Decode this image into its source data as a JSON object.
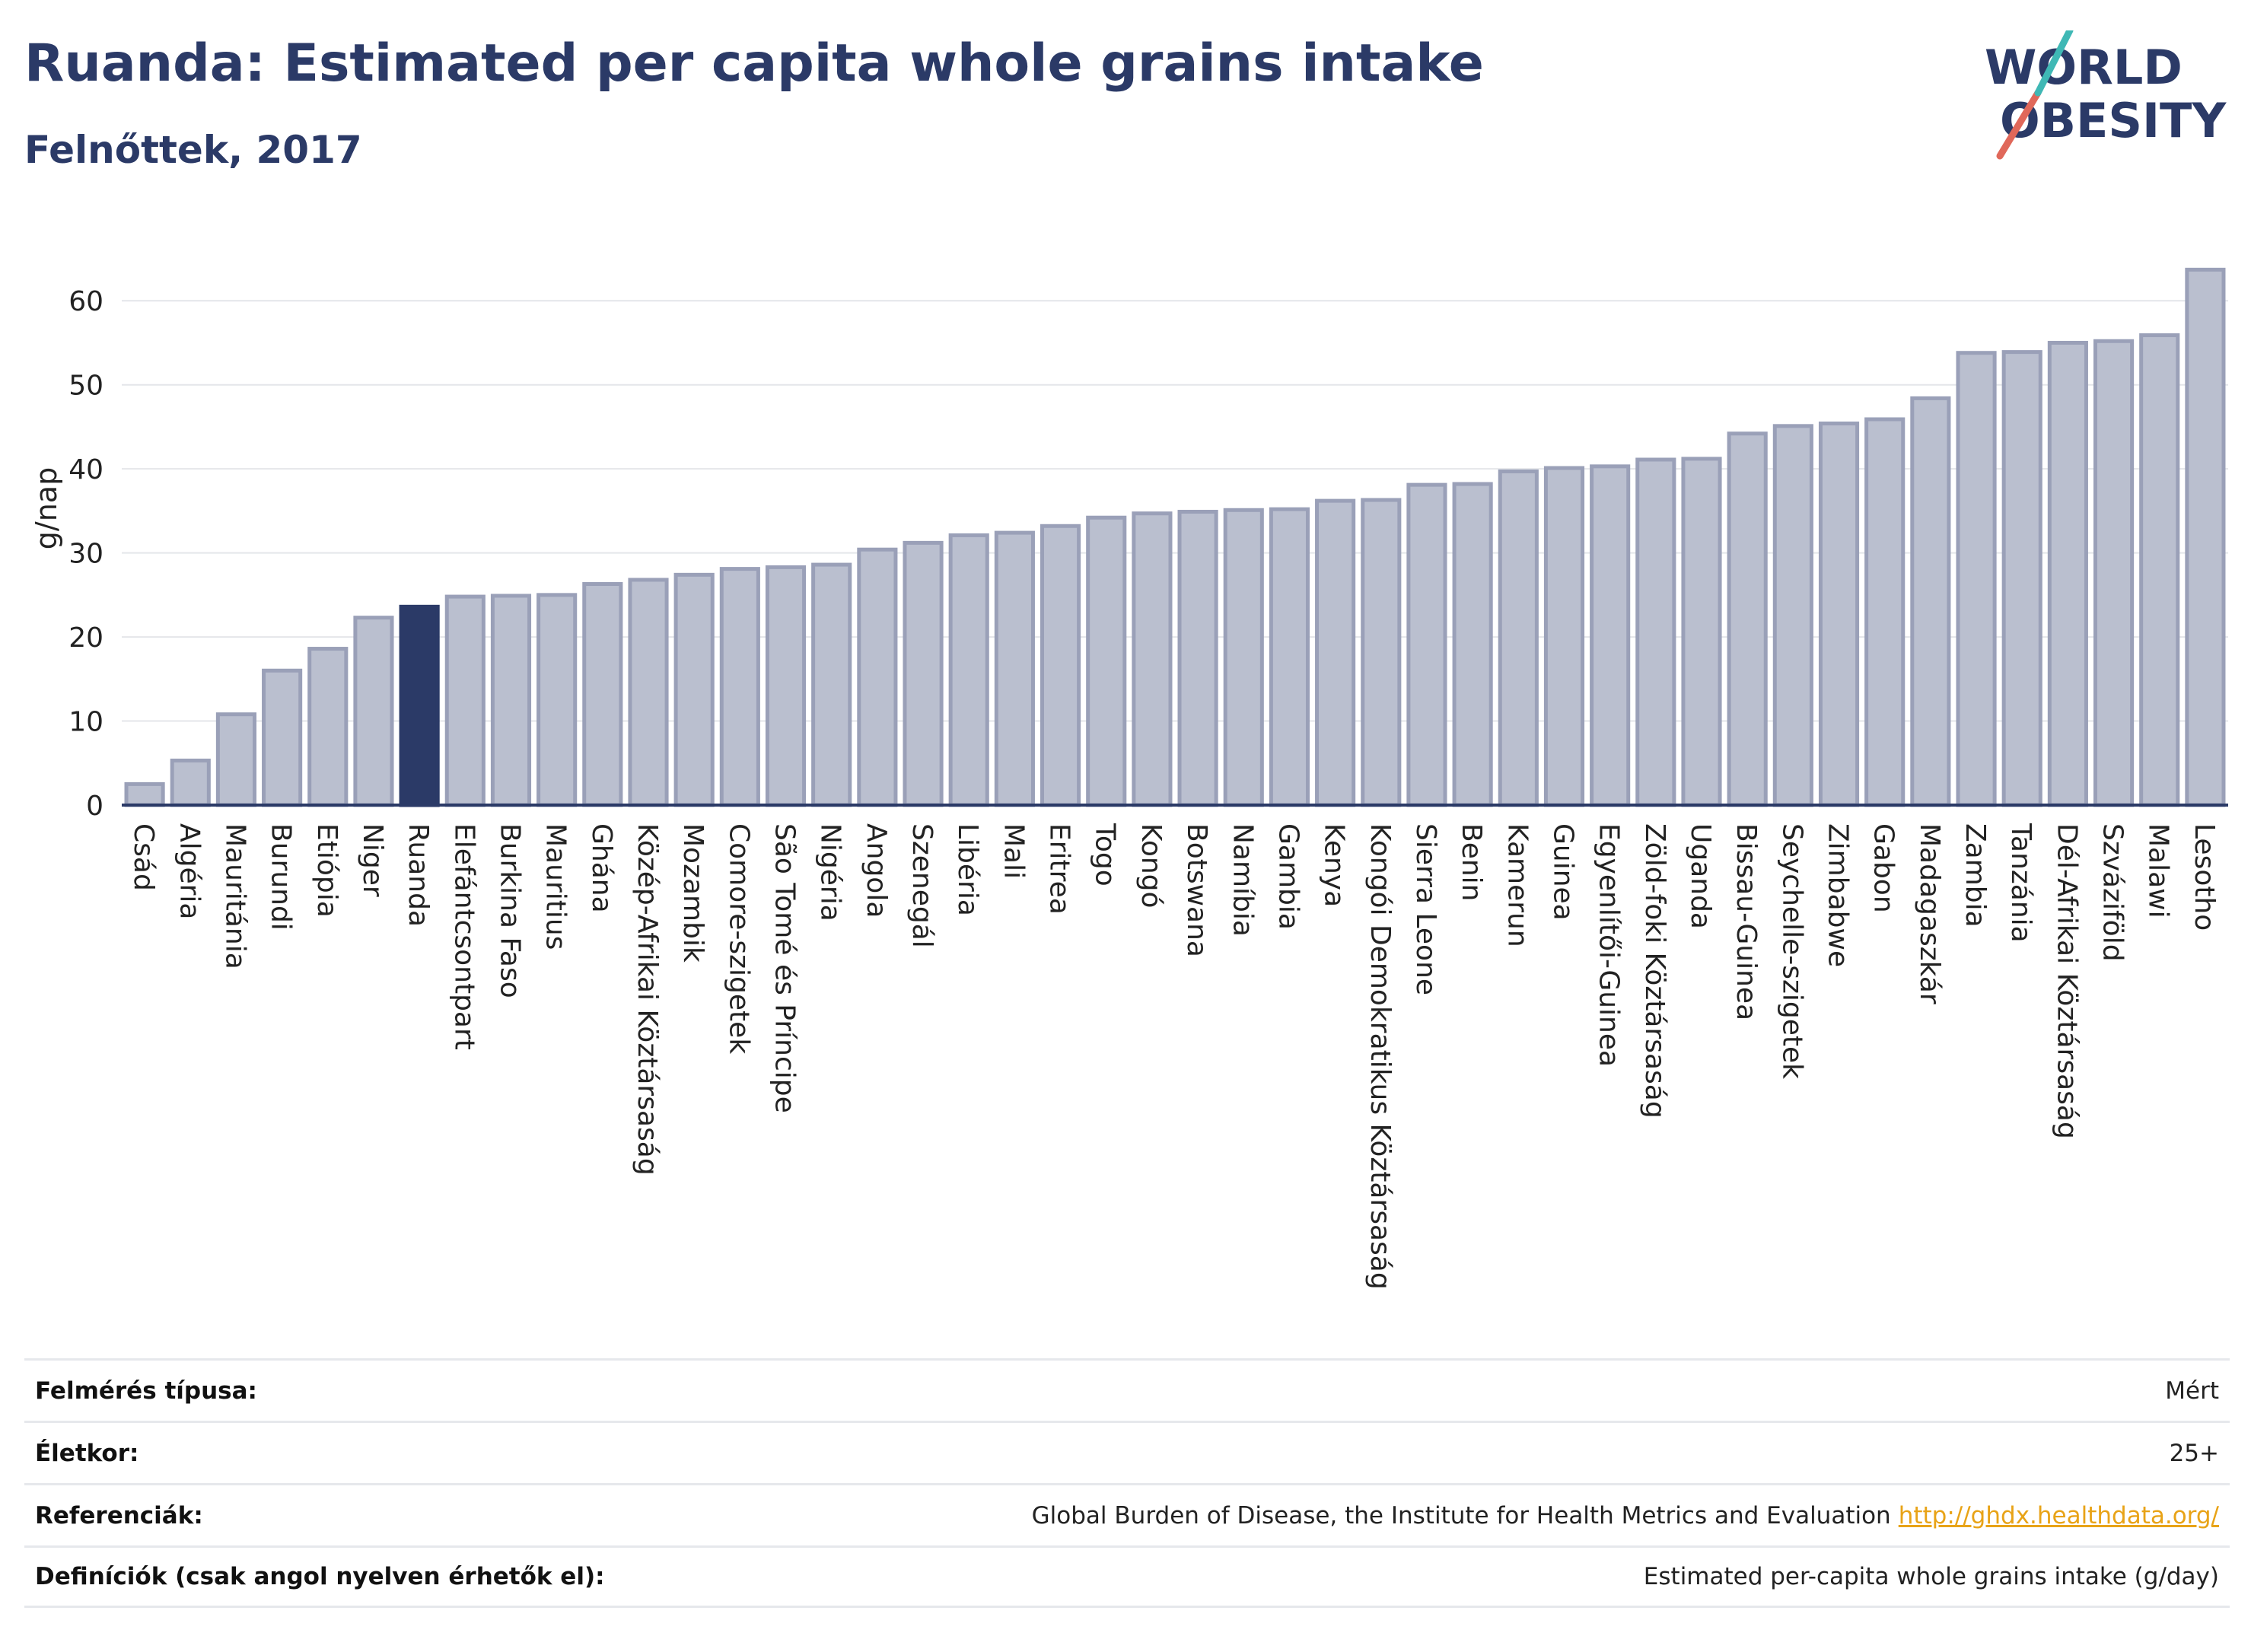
{
  "header": {
    "title": "Ruanda: Estimated per capita whole grains intake",
    "subtitle": "Felnőttek, 2017",
    "logo_line1": "WORLD",
    "logo_line2": "OBESITY"
  },
  "colors": {
    "highlight": "#2b3a67",
    "bar_fill": "#babfcf",
    "bar_stroke": "#9aa0b8",
    "logo_slash_teal": "#3fb8b5",
    "logo_slash_red": "#e0685a",
    "link": "#e8a317"
  },
  "chart_data": {
    "type": "bar",
    "ylabel": "g/nap",
    "ylim": [
      0,
      65
    ],
    "yticks": [
      0,
      10,
      20,
      30,
      40,
      50,
      60
    ],
    "highlight": "Ruanda",
    "grid": true,
    "categories": [
      "Csád",
      "Algéria",
      "Mauritánia",
      "Burundi",
      "Etiópia",
      "Niger",
      "Ruanda",
      "Elefántcsontpart",
      "Burkina Faso",
      "Mauritius",
      "Ghána",
      "Közép-Afrikai Köztársaság",
      "Mozambik",
      "Comore-szigetek",
      "São Tomé és Príncipe",
      "Nigéria",
      "Angola",
      "Szenegál",
      "Libéria",
      "Mali",
      "Eritrea",
      "Togo",
      "Kongó",
      "Botswana",
      "Namíbia",
      "Gambia",
      "Kenya",
      "Kongói Demokratikus Köztársaság",
      "Sierra Leone",
      "Benin",
      "Kamerun",
      "Guinea",
      "Egyenlítői-Guinea",
      "Zöld-foki Köztársaság",
      "Uganda",
      "Bissau-Guinea",
      "Seychelle-szigetek",
      "Zimbabwe",
      "Gabon",
      "Madagaszkár",
      "Zambia",
      "Tanzánia",
      "Dél-Afrikai Köztársaság",
      "Szváziföld",
      "Malawi",
      "Lesotho"
    ],
    "values": [
      2.5,
      5.3,
      10.8,
      16.0,
      18.6,
      22.3,
      23.6,
      24.8,
      24.9,
      25.0,
      26.3,
      26.8,
      27.4,
      28.1,
      28.3,
      28.6,
      30.4,
      31.2,
      32.1,
      32.4,
      33.2,
      34.2,
      34.7,
      34.9,
      35.1,
      35.2,
      36.2,
      36.3,
      38.1,
      38.2,
      39.7,
      40.1,
      40.3,
      41.1,
      41.2,
      44.2,
      45.1,
      45.4,
      45.9,
      48.4,
      53.8,
      53.9,
      55.0,
      55.2,
      55.9,
      63.7
    ]
  },
  "info_table": [
    {
      "label": "Felmérés típusa:",
      "value": "Mért",
      "link": ""
    },
    {
      "label": "Életkor:",
      "value": "25+",
      "link": ""
    },
    {
      "label": "Referenciák:",
      "value": "Global Burden of Disease, the Institute for Health Metrics and Evaluation",
      "link": "http://ghdx.healthdata.org/"
    },
    {
      "label": "Definíciók (csak angol nyelven érhetők el):",
      "value": "Estimated per-capita whole grains intake (g/day)",
      "link": ""
    }
  ]
}
